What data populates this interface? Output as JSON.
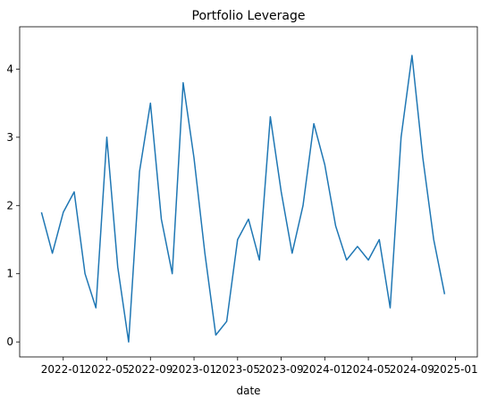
{
  "chart_data": {
    "type": "line",
    "title": "Portfolio Leverage",
    "xlabel": "date",
    "x": [
      "2021-11",
      "2021-12",
      "2022-01",
      "2022-02",
      "2022-03",
      "2022-04",
      "2022-05",
      "2022-06",
      "2022-07",
      "2022-08",
      "2022-09",
      "2022-10",
      "2022-11",
      "2022-12",
      "2023-01",
      "2023-02",
      "2023-03",
      "2023-04",
      "2023-05",
      "2023-06",
      "2023-07",
      "2023-08",
      "2023-09",
      "2023-10",
      "2023-11",
      "2023-12",
      "2024-01",
      "2024-02",
      "2024-03",
      "2024-04",
      "2024-05",
      "2024-06",
      "2024-07",
      "2024-08",
      "2024-09",
      "2024-10",
      "2024-11",
      "2024-12"
    ],
    "series": [
      {
        "name": "leverage",
        "color": "#1f77b4",
        "values": [
          1.9,
          1.3,
          1.9,
          2.2,
          1.0,
          0.5,
          3.0,
          1.1,
          0.0,
          2.5,
          3.5,
          1.8,
          1.0,
          3.8,
          2.7,
          1.3,
          0.1,
          0.3,
          1.5,
          1.8,
          1.2,
          3.3,
          2.2,
          1.3,
          2.0,
          3.2,
          2.6,
          1.7,
          1.2,
          1.4,
          1.2,
          1.5,
          0.5,
          3.0,
          4.2,
          2.7,
          1.5,
          0.7
        ]
      }
    ],
    "xlim": [
      "2021-09",
      "2025-03"
    ],
    "xticks": [
      "2022-01",
      "2022-05",
      "2022-09",
      "2023-01",
      "2023-05",
      "2023-09",
      "2024-01",
      "2024-05",
      "2024-09",
      "2025-01"
    ],
    "ylim": [
      -0.22,
      4.62
    ],
    "yticks": [
      0,
      1,
      2,
      3,
      4
    ],
    "grid": false
  }
}
